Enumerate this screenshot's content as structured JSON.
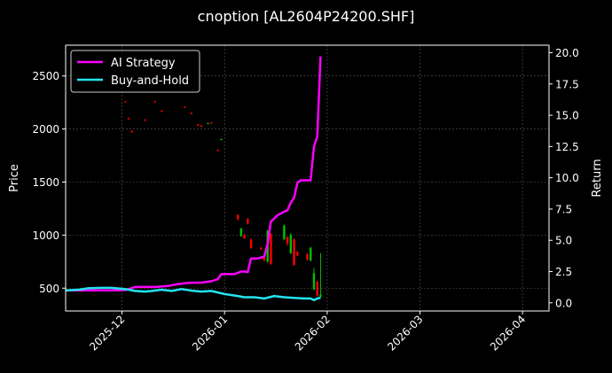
{
  "chart_data": {
    "type": "candlestick+line",
    "title": "cnoption [AL2604P24200.SHF]",
    "ylabel_left": "Price",
    "ylabel_right": "Return",
    "ylim_left": [
      285,
      2790
    ],
    "ylim_right": [
      -0.65,
      20.6
    ],
    "yticks_left": [
      "500",
      "1000",
      "1500",
      "2000",
      "2500"
    ],
    "yticks_left_values": [
      500,
      1000,
      1500,
      2000,
      2500
    ],
    "yticks_right": [
      "0.0",
      "2.5",
      "5.0",
      "7.5",
      "10.0",
      "12.5",
      "15.0",
      "17.5",
      "20.0"
    ],
    "yticks_right_values": [
      0,
      2.5,
      5,
      7.5,
      10,
      12.5,
      15,
      17.5,
      20
    ],
    "xlim": [
      "2025-11-14",
      "2026-04-09"
    ],
    "xticks": [
      "2025-12",
      "2026-01",
      "2026-02",
      "2026-03",
      "2026-04"
    ],
    "xticks_values": [
      "2025-12-01",
      "2026-01-01",
      "2026-02-01",
      "2026-03-01",
      "2026-04-01"
    ],
    "grid": true,
    "legend_position": "top-left",
    "colors": {
      "background": "#000000",
      "strategy": "#ff00ff",
      "buyhold": "#22e4f0",
      "up": "#00c000",
      "down": "#ff0000",
      "grid": "#5a5a5a",
      "text": "#ffffff"
    },
    "series": [
      {
        "name": "AI Strategy",
        "axis": "right",
        "points": [
          [
            "2025-11-14",
            1.0
          ],
          [
            "2025-11-20",
            1.0
          ],
          [
            "2025-11-27",
            1.0
          ],
          [
            "2025-12-02",
            1.02
          ],
          [
            "2025-12-04",
            1.18
          ],
          [
            "2025-12-05",
            1.27
          ],
          [
            "2025-12-08",
            1.27
          ],
          [
            "2025-12-11",
            1.27
          ],
          [
            "2025-12-15",
            1.35
          ],
          [
            "2025-12-18",
            1.5
          ],
          [
            "2025-12-21",
            1.6
          ],
          [
            "2025-12-25",
            1.62
          ],
          [
            "2025-12-28",
            1.72
          ],
          [
            "2025-12-30",
            1.9
          ],
          [
            "2025-12-31",
            2.3
          ],
          [
            "2026-01-04",
            2.3
          ],
          [
            "2026-01-06",
            2.5
          ],
          [
            "2026-01-07",
            2.5
          ],
          [
            "2026-01-08",
            2.45
          ],
          [
            "2026-01-09",
            3.55
          ],
          [
            "2026-01-11",
            3.55
          ],
          [
            "2026-01-13",
            3.7
          ],
          [
            "2026-01-14",
            4.7
          ],
          [
            "2026-01-15",
            6.5
          ],
          [
            "2026-01-17",
            7.0
          ],
          [
            "2026-01-19",
            7.3
          ],
          [
            "2026-01-20",
            7.4
          ],
          [
            "2026-01-21",
            8.0
          ],
          [
            "2026-01-22",
            8.4
          ],
          [
            "2026-01-23",
            9.6
          ],
          [
            "2026-01-24",
            9.8
          ],
          [
            "2026-01-25",
            9.8
          ],
          [
            "2026-01-26",
            9.8
          ],
          [
            "2026-01-27",
            9.8
          ],
          [
            "2026-01-28",
            12.5
          ],
          [
            "2026-01-29",
            13.3
          ],
          [
            "2026-01-30",
            19.7
          ]
        ]
      },
      {
        "name": "Buy-and-Hold",
        "axis": "right",
        "points": [
          [
            "2025-11-14",
            1.0
          ],
          [
            "2025-11-18",
            1.05
          ],
          [
            "2025-11-21",
            1.18
          ],
          [
            "2025-11-25",
            1.2
          ],
          [
            "2025-11-28",
            1.2
          ],
          [
            "2025-12-02",
            1.1
          ],
          [
            "2025-12-05",
            0.95
          ],
          [
            "2025-12-08",
            0.9
          ],
          [
            "2025-12-10",
            0.95
          ],
          [
            "2025-12-13",
            1.05
          ],
          [
            "2025-12-16",
            0.95
          ],
          [
            "2025-12-19",
            1.1
          ],
          [
            "2025-12-22",
            0.98
          ],
          [
            "2025-12-25",
            0.9
          ],
          [
            "2025-12-28",
            0.95
          ],
          [
            "2026-01-01",
            0.7
          ],
          [
            "2026-01-05",
            0.55
          ],
          [
            "2026-01-07",
            0.45
          ],
          [
            "2026-01-10",
            0.45
          ],
          [
            "2026-01-13",
            0.35
          ],
          [
            "2026-01-16",
            0.55
          ],
          [
            "2026-01-19",
            0.45
          ],
          [
            "2026-01-22",
            0.4
          ],
          [
            "2026-01-25",
            0.35
          ],
          [
            "2026-01-27",
            0.35
          ],
          [
            "2026-01-28",
            0.22
          ],
          [
            "2026-01-29",
            0.35
          ],
          [
            "2026-01-30",
            0.4
          ]
        ]
      }
    ],
    "candles": [
      {
        "date": "2025-12-02",
        "open": 2260,
        "high": 2265,
        "low": 2250,
        "close": 2255
      },
      {
        "date": "2025-12-03",
        "open": 2100,
        "high": 2110,
        "low": 2090,
        "close": 2095
      },
      {
        "date": "2025-12-04",
        "open": 1980,
        "high": 1990,
        "low": 1965,
        "close": 1972
      },
      {
        "date": "2025-12-08",
        "open": 2085,
        "high": 2095,
        "low": 2075,
        "close": 2080
      },
      {
        "date": "2025-12-11",
        "open": 2260,
        "high": 2268,
        "low": 2250,
        "close": 2255
      },
      {
        "date": "2025-12-13",
        "open": 2170,
        "high": 2180,
        "low": 2160,
        "close": 2165
      },
      {
        "date": "2025-12-20",
        "open": 2210,
        "high": 2215,
        "low": 2200,
        "close": 2205
      },
      {
        "date": "2025-12-22",
        "open": 2150,
        "high": 2158,
        "low": 2140,
        "close": 2145
      },
      {
        "date": "2025-12-24",
        "open": 2040,
        "high": 2050,
        "low": 2030,
        "close": 2035
      },
      {
        "date": "2025-12-25",
        "open": 2030,
        "high": 2038,
        "low": 2020,
        "close": 2025
      },
      {
        "date": "2025-12-27",
        "open": 2050,
        "high": 2060,
        "low": 2045,
        "close": 2055
      },
      {
        "date": "2025-12-28",
        "open": 2060,
        "high": 2068,
        "low": 2050,
        "close": 2052
      },
      {
        "date": "2025-12-30",
        "open": 1800,
        "high": 1810,
        "low": 1790,
        "close": 1795
      },
      {
        "date": "2025-12-31",
        "open": 1900,
        "high": 1910,
        "low": 1895,
        "close": 1905
      },
      {
        "date": "2026-01-05",
        "open": 1190,
        "high": 1195,
        "low": 1140,
        "close": 1150
      },
      {
        "date": "2026-01-06",
        "open": 990,
        "high": 1070,
        "low": 985,
        "close": 1060
      },
      {
        "date": "2026-01-07",
        "open": 1000,
        "high": 1010,
        "low": 965,
        "close": 970
      },
      {
        "date": "2026-01-08",
        "open": 1150,
        "high": 1160,
        "low": 1100,
        "close": 1110
      },
      {
        "date": "2026-01-09",
        "open": 960,
        "high": 965,
        "low": 870,
        "close": 880
      },
      {
        "date": "2026-01-12",
        "open": 880,
        "high": 890,
        "low": 860,
        "close": 865
      },
      {
        "date": "2026-01-13",
        "open": 790,
        "high": 800,
        "low": 750,
        "close": 760
      },
      {
        "date": "2026-01-14",
        "open": 750,
        "high": 1050,
        "low": 740,
        "close": 1040
      },
      {
        "date": "2026-01-15",
        "open": 1010,
        "high": 1020,
        "low": 720,
        "close": 730
      },
      {
        "date": "2026-01-19",
        "open": 960,
        "high": 1100,
        "low": 955,
        "close": 1090
      },
      {
        "date": "2026-01-20",
        "open": 980,
        "high": 990,
        "low": 900,
        "close": 920
      },
      {
        "date": "2026-01-21",
        "open": 830,
        "high": 1020,
        "low": 820,
        "close": 1000
      },
      {
        "date": "2026-01-22",
        "open": 960,
        "high": 970,
        "low": 710,
        "close": 720
      },
      {
        "date": "2026-01-23",
        "open": 840,
        "high": 850,
        "low": 800,
        "close": 810
      },
      {
        "date": "2026-01-26",
        "open": 820,
        "high": 830,
        "low": 760,
        "close": 770
      },
      {
        "date": "2026-01-27",
        "open": 760,
        "high": 890,
        "low": 755,
        "close": 880
      },
      {
        "date": "2026-01-28",
        "open": 490,
        "high": 690,
        "low": 480,
        "close": 640
      },
      {
        "date": "2026-01-29",
        "open": 560,
        "high": 570,
        "low": 420,
        "close": 430
      },
      {
        "date": "2026-01-30",
        "open": 420,
        "high": 830,
        "low": 410,
        "close": 440
      }
    ]
  }
}
